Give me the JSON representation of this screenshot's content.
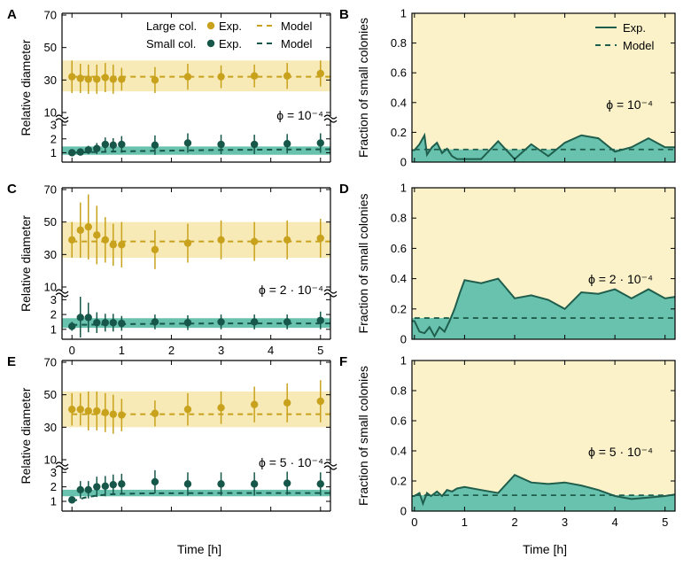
{
  "colors": {
    "large": "#c8a21c",
    "large_band": "#f7eab6",
    "small": "#17574a",
    "small_band": "#69c2ae",
    "right_bg": "#fbf2c9",
    "right_fill": "#69c2ae",
    "right_line": "#1f5e4c"
  },
  "labels": {
    "x_axis": "Time [h]",
    "y_left": "Relative diameter",
    "y_right": "Fraction of small colonies",
    "legend_large": "Large col.",
    "legend_small": "Small col.",
    "legend_exp": "Exp.",
    "legend_model": "Model"
  },
  "chart_data": [
    {
      "id": "A",
      "type": "scatter",
      "ylabel": "Relative diameter",
      "xlabel": "",
      "annotation": "ϕ = 10⁻⁴",
      "xlim": [
        -0.2,
        5.2
      ],
      "yticks_upper": [
        10,
        30,
        50,
        70
      ],
      "yticks_lower": [
        1,
        2,
        3
      ],
      "xticks": [
        0,
        1,
        2,
        3,
        4,
        5
      ],
      "legend": {
        "large": "Large col.",
        "small": "Small col.",
        "exp": "Exp.",
        "model": "Model"
      },
      "large": {
        "x": [
          0,
          0.17,
          0.33,
          0.5,
          0.67,
          0.83,
          1,
          1.67,
          2.33,
          3,
          3.67,
          4.33,
          5
        ],
        "y": [
          32,
          31,
          30.5,
          30.5,
          31.5,
          30.5,
          30.5,
          30,
          32,
          32,
          32.5,
          32.5,
          34
        ],
        "err": [
          10,
          9,
          9,
          9,
          9,
          9,
          7,
          8,
          8,
          7,
          7,
          8,
          8
        ],
        "model": 32,
        "band": [
          23,
          42
        ]
      },
      "small": {
        "x": [
          0,
          0.17,
          0.33,
          0.5,
          0.67,
          0.83,
          1,
          1.67,
          2.33,
          3,
          3.67,
          4.33,
          5
        ],
        "y": [
          1.0,
          1.05,
          1.2,
          1.3,
          1.6,
          1.55,
          1.6,
          1.55,
          1.7,
          1.6,
          1.6,
          1.65,
          1.7
        ],
        "err": [
          0.2,
          0.2,
          0.3,
          0.4,
          0.5,
          0.5,
          0.6,
          0.7,
          0.7,
          0.7,
          0.7,
          0.7,
          0.7
        ],
        "model_x": [
          0,
          0.5,
          1,
          2,
          3,
          4,
          5.2
        ],
        "model_y": [
          1.0,
          1.05,
          1.1,
          1.15,
          1.2,
          1.22,
          1.25
        ],
        "band_lo": 0.85,
        "band_hi": 1.45
      }
    },
    {
      "id": "B",
      "type": "area",
      "ylabel": "Fraction of small colonies",
      "xlabel": "",
      "annotation": "ϕ = 10⁻⁴",
      "xlim": [
        -0.05,
        5.2
      ],
      "ylim": [
        0,
        1
      ],
      "yticks": [
        0,
        0.2,
        0.4,
        0.6,
        0.8,
        1
      ],
      "xticks": [
        0,
        1,
        2,
        3,
        4,
        5
      ],
      "legend": {
        "exp": "Exp.",
        "model": "Model"
      },
      "exp": {
        "x": [
          0,
          0.1,
          0.2,
          0.25,
          0.35,
          0.45,
          0.55,
          0.65,
          0.75,
          0.85,
          1,
          1.33,
          1.67,
          2,
          2.33,
          2.67,
          3,
          3.33,
          3.67,
          4,
          4.33,
          4.67,
          5,
          5.2
        ],
        "y": [
          0.08,
          0.12,
          0.18,
          0.05,
          0.1,
          0.13,
          0.06,
          0.09,
          0.04,
          0.02,
          0.02,
          0.02,
          0.14,
          0.02,
          0.12,
          0.04,
          0.13,
          0.18,
          0.16,
          0.07,
          0.1,
          0.16,
          0.1,
          0.1
        ]
      },
      "model": {
        "y": 0.085,
        "x_start": 0
      }
    },
    {
      "id": "C",
      "type": "scatter",
      "ylabel": "Relative diameter",
      "xlabel": "",
      "annotation": "ϕ = 2 · 10⁻⁴",
      "xlim": [
        -0.2,
        5.2
      ],
      "yticks_upper": [
        10,
        30,
        50,
        70
      ],
      "yticks_lower": [
        1,
        2,
        3
      ],
      "xticks": [
        0,
        1,
        2,
        3,
        4,
        5
      ],
      "legend": null,
      "large": {
        "x": [
          0,
          0.17,
          0.33,
          0.5,
          0.67,
          0.83,
          1,
          1.67,
          2.33,
          3,
          3.67,
          4.33,
          5
        ],
        "y": [
          39,
          45,
          47,
          42,
          39,
          36,
          36,
          33,
          37,
          39,
          38,
          39,
          40
        ],
        "err": [
          11,
          17,
          20,
          18,
          14,
          13,
          14,
          12,
          12,
          12,
          12,
          12,
          12
        ],
        "model": 38,
        "band": [
          28,
          50
        ]
      },
      "small": {
        "x": [
          0,
          0.17,
          0.33,
          0.5,
          0.67,
          0.83,
          1,
          1.67,
          2.33,
          3,
          3.67,
          4.33,
          5
        ],
        "y": [
          1.2,
          1.8,
          1.8,
          1.45,
          1.45,
          1.45,
          1.4,
          1.5,
          1.45,
          1.5,
          1.5,
          1.5,
          1.6
        ],
        "err": [
          0.3,
          1.5,
          1.0,
          0.7,
          0.6,
          0.6,
          0.5,
          0.5,
          0.5,
          0.5,
          0.5,
          0.5,
          0.6
        ],
        "model_x": [
          0,
          0.5,
          1,
          2,
          3,
          4,
          5.2
        ],
        "model_y": [
          1.3,
          1.32,
          1.35,
          1.38,
          1.4,
          1.4,
          1.4
        ],
        "band_lo": 1.1,
        "band_hi": 1.75
      }
    },
    {
      "id": "D",
      "type": "area",
      "ylabel": "Fraction of small colonies",
      "xlabel": "",
      "annotation": "ϕ = 2 · 10⁻⁴",
      "xlim": [
        -0.05,
        5.2
      ],
      "ylim": [
        0,
        1
      ],
      "yticks": [
        0,
        0.2,
        0.4,
        0.6,
        0.8,
        1
      ],
      "xticks": [
        0,
        1,
        2,
        3,
        4,
        5
      ],
      "legend": null,
      "exp": {
        "x": [
          0,
          0.1,
          0.2,
          0.3,
          0.4,
          0.5,
          0.6,
          0.7,
          0.8,
          0.9,
          1,
          1.33,
          1.67,
          2,
          2.33,
          2.67,
          3,
          3.33,
          3.67,
          4,
          4.33,
          4.67,
          5,
          5.2
        ],
        "y": [
          0.12,
          0.05,
          0.04,
          0.08,
          0.02,
          0.08,
          0.05,
          0.12,
          0.2,
          0.3,
          0.39,
          0.37,
          0.4,
          0.27,
          0.29,
          0.26,
          0.2,
          0.31,
          0.3,
          0.33,
          0.27,
          0.33,
          0.27,
          0.28
        ]
      },
      "model": {
        "y": 0.14,
        "x_start": 0
      }
    },
    {
      "id": "E",
      "type": "scatter",
      "ylabel": "Relative diameter",
      "xlabel": "Time [h]",
      "annotation": "ϕ = 5 · 10⁻⁴",
      "xlim": [
        -0.2,
        5.2
      ],
      "yticks_upper": [
        10,
        30,
        50,
        70
      ],
      "yticks_lower": [
        1,
        2,
        3
      ],
      "xticks": [
        0,
        1,
        2,
        3,
        4,
        5
      ],
      "legend": null,
      "large": {
        "x": [
          0,
          0.17,
          0.33,
          0.5,
          0.67,
          0.83,
          1,
          1.67,
          2.33,
          3,
          3.67,
          4.33,
          5
        ],
        "y": [
          41,
          41,
          40,
          40,
          39,
          38,
          37.5,
          38.5,
          41,
          42,
          44,
          45,
          46
        ],
        "err": [
          10,
          10,
          12,
          12,
          12,
          12,
          10,
          8,
          10,
          10,
          11,
          12,
          13
        ],
        "model": 38,
        "band": [
          30,
          52
        ]
      },
      "small": {
        "x": [
          0,
          0.17,
          0.33,
          0.5,
          0.67,
          0.83,
          1,
          1.67,
          2.33,
          3,
          3.67,
          4.33,
          5
        ],
        "y": [
          1.1,
          1.8,
          1.8,
          2.0,
          2.05,
          2.15,
          2.2,
          2.35,
          2.2,
          2.2,
          2.2,
          2.25,
          2.2
        ],
        "err": [
          0.2,
          0.6,
          0.6,
          0.7,
          0.7,
          0.7,
          0.7,
          0.8,
          0.8,
          0.8,
          0.8,
          0.8,
          0.8
        ],
        "model_x": [
          0,
          0.25,
          0.5,
          0.75,
          1,
          1.5,
          2,
          3,
          4,
          5.2
        ],
        "model_y": [
          1.0,
          1.25,
          1.4,
          1.48,
          1.52,
          1.55,
          1.56,
          1.57,
          1.57,
          1.57
        ],
        "band_lo": 1.35,
        "band_hi": 1.8
      }
    },
    {
      "id": "F",
      "type": "area",
      "ylabel": "Fraction of small colonies",
      "xlabel": "Time [h]",
      "annotation": "ϕ = 5 · 10⁻⁴",
      "xlim": [
        -0.05,
        5.2
      ],
      "ylim": [
        0,
        1
      ],
      "yticks": [
        0,
        0.2,
        0.4,
        0.6,
        0.8,
        1
      ],
      "xticks": [
        0,
        1,
        2,
        3,
        4,
        5
      ],
      "legend": null,
      "exp": {
        "x": [
          0,
          0.1,
          0.17,
          0.25,
          0.33,
          0.45,
          0.55,
          0.65,
          0.75,
          0.85,
          1,
          1.33,
          1.67,
          2,
          2.33,
          2.67,
          3,
          3.33,
          3.67,
          4,
          4.33,
          4.67,
          5,
          5.2
        ],
        "y": [
          0.1,
          0.12,
          0.05,
          0.12,
          0.1,
          0.13,
          0.1,
          0.14,
          0.13,
          0.15,
          0.16,
          0.14,
          0.12,
          0.24,
          0.19,
          0.18,
          0.19,
          0.17,
          0.14,
          0.1,
          0.08,
          0.09,
          0.1,
          0.11
        ]
      },
      "model": {
        "y": 0.105,
        "x_start": 0
      }
    }
  ]
}
